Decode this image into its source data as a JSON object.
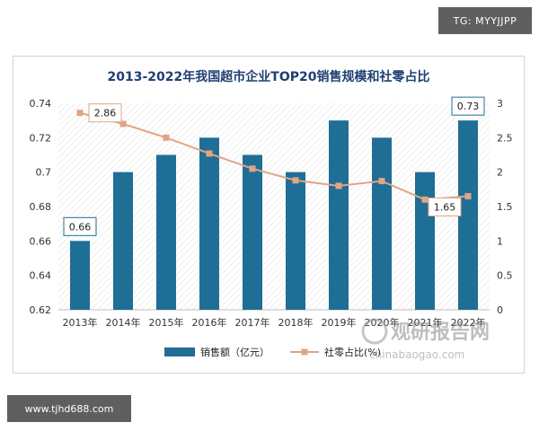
{
  "watermark_top": "TG: MYYJJPP",
  "watermark_bottom": "www.tjhd688.com",
  "watermark_logo": {
    "cn": "观研报告网",
    "url": "chinabaogao.com"
  },
  "colors": {
    "bar": "#1f6e96",
    "line": "#e0a585",
    "title": "#1f3f73",
    "frame": "#c9d4e4"
  },
  "chart_data": {
    "type": "bar",
    "title": "2013-2022年我国超市企业TOP20销售规模和社零占比",
    "categories": [
      "2013年",
      "2014年",
      "2015年",
      "2016年",
      "2017年",
      "2018年",
      "2019年",
      "2020年",
      "2021年",
      "2022年"
    ],
    "series": [
      {
        "name": "销售额（亿元）",
        "type": "bar",
        "axis": "left",
        "values": [
          0.66,
          0.7,
          0.71,
          0.72,
          0.71,
          0.7,
          0.73,
          0.72,
          0.7,
          0.73
        ]
      },
      {
        "name": "社零占比(%)",
        "type": "line",
        "axis": "right",
        "values": [
          2.86,
          2.7,
          2.5,
          2.27,
          2.05,
          1.88,
          1.8,
          1.87,
          1.6,
          1.65
        ]
      }
    ],
    "y_left": {
      "min": 0.62,
      "max": 0.74,
      "ticks": [
        "0.62",
        "0.64",
        "0.66",
        "0.68",
        "0.7",
        "0.72",
        "0.74"
      ]
    },
    "y_right": {
      "min": 0,
      "max": 3,
      "ticks": [
        "0",
        "0.5",
        "1",
        "1.5",
        "2",
        "2.5",
        "3"
      ]
    },
    "annotations": [
      {
        "series": 0,
        "index": 0,
        "text": "0.66"
      },
      {
        "series": 0,
        "index": 9,
        "text": "0.73"
      },
      {
        "series": 1,
        "index": 0,
        "text": "2.86"
      },
      {
        "series": 1,
        "index": 9,
        "text": "1.65"
      }
    ],
    "legend_position": "bottom",
    "grid": false
  }
}
